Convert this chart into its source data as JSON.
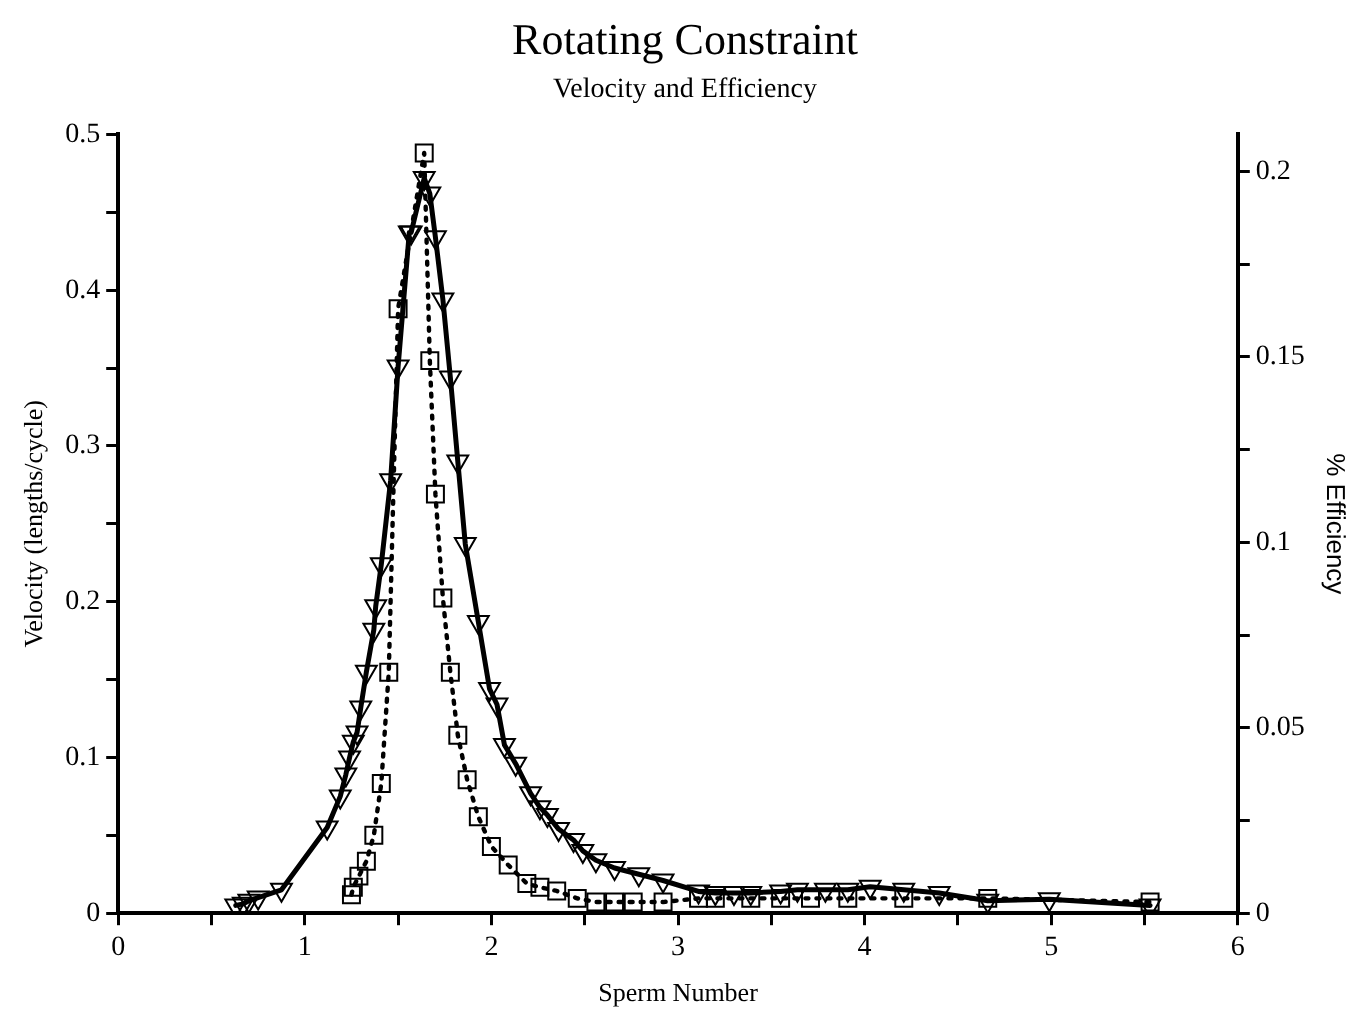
{
  "chart_data": {
    "type": "line",
    "title": "Rotating Constraint",
    "subtitle": "Velocity and Efficiency",
    "xlabel": "Sperm Number",
    "ylabel": "Velocity (lengths/cycle)",
    "y2label": "% Efficiency",
    "xlim": [
      0,
      6
    ],
    "xticks": [
      0,
      {
        "value": 0.5,
        "label": null
      },
      1,
      {
        "value": 1.5,
        "label": null
      },
      2,
      {
        "value": 2.5,
        "label": null
      },
      3,
      {
        "value": 3.5,
        "label": null
      },
      4,
      {
        "value": 4.5,
        "label": null
      },
      5,
      {
        "value": 5.5,
        "label": null
      },
      6
    ],
    "ylim": [
      0,
      0.5
    ],
    "yticks": [
      0,
      {
        "value": 0.05,
        "label": null
      },
      0.1,
      {
        "value": 0.15,
        "label": null
      },
      0.2,
      {
        "value": 0.25,
        "label": null
      },
      0.3,
      {
        "value": 0.35,
        "label": null
      },
      0.4,
      {
        "value": 0.45,
        "label": null
      },
      0.5
    ],
    "y2lim": [
      0,
      0.21
    ],
    "y2ticks": [
      0,
      {
        "value": 0.025,
        "label": null
      },
      0.05,
      {
        "value": 0.075,
        "label": null
      },
      0.1,
      {
        "value": 0.125,
        "label": null
      },
      0.15,
      {
        "value": 0.175,
        "label": null
      },
      0.2
    ],
    "grid": false,
    "legend": false,
    "series": [
      {
        "type": "line",
        "color": "#000000",
        "marker": "triangle",
        "line_style": "solid",
        "x": [
          0.63,
          0.67,
          0.7,
          0.75,
          0.875,
          1.12,
          1.19,
          1.22,
          1.24,
          1.26,
          1.28,
          1.3,
          1.33,
          1.37,
          1.38,
          1.41,
          1.46,
          1.5,
          1.56,
          1.57,
          1.64,
          1.67,
          1.7,
          1.74,
          1.78,
          1.82,
          1.86,
          1.93,
          1.99,
          2.03,
          2.07,
          2.13,
          2.21,
          2.26,
          2.3,
          2.36,
          2.44,
          2.49,
          2.56,
          2.66,
          2.79,
          2.92,
          3.11,
          3.2,
          3.3,
          3.39,
          3.55,
          3.64,
          3.79,
          3.91,
          4.03,
          4.21,
          4.4,
          4.66,
          4.99,
          5.53
        ],
        "values": [
          0.005,
          0.006,
          0.008,
          0.01,
          0.015,
          0.055,
          0.075,
          0.089,
          0.1,
          0.11,
          0.116,
          0.132,
          0.155,
          0.182,
          0.197,
          0.224,
          0.278,
          0.351,
          0.437,
          0.437,
          0.472,
          0.462,
          0.434,
          0.394,
          0.344,
          0.29,
          0.237,
          0.187,
          0.144,
          0.134,
          0.108,
          0.096,
          0.077,
          0.068,
          0.063,
          0.054,
          0.047,
          0.04,
          0.034,
          0.029,
          0.025,
          0.021,
          0.014,
          0.013,
          0.013,
          0.013,
          0.014,
          0.015,
          0.015,
          0.015,
          0.017,
          0.015,
          0.013,
          0.008,
          0.009,
          0.005
        ]
      },
      {
        "type": "line",
        "axis": "y2",
        "color": "#000000",
        "marker": "square",
        "line_style": "dotted",
        "x": [
          1.25,
          1.26,
          1.29,
          1.33,
          1.37,
          1.41,
          1.45,
          1.5,
          1.64,
          1.67,
          1.7,
          1.74,
          1.78,
          1.82,
          1.87,
          1.93,
          2.0,
          2.09,
          2.19,
          2.26,
          2.35,
          2.46,
          2.56,
          2.66,
          2.76,
          2.92,
          3.11,
          3.2,
          3.39,
          3.55,
          3.71,
          3.91,
          4.21,
          4.66,
          5.53
        ],
        "values": [
          0.005,
          0.007,
          0.01,
          0.014,
          0.021,
          0.035,
          0.065,
          0.163,
          0.205,
          0.149,
          0.113,
          0.085,
          0.065,
          0.048,
          0.036,
          0.026,
          0.018,
          0.013,
          0.008,
          0.007,
          0.006,
          0.004,
          0.003,
          0.003,
          0.003,
          0.003,
          0.004,
          0.004,
          0.004,
          0.004,
          0.004,
          0.004,
          0.004,
          0.004,
          0.003
        ]
      }
    ]
  }
}
